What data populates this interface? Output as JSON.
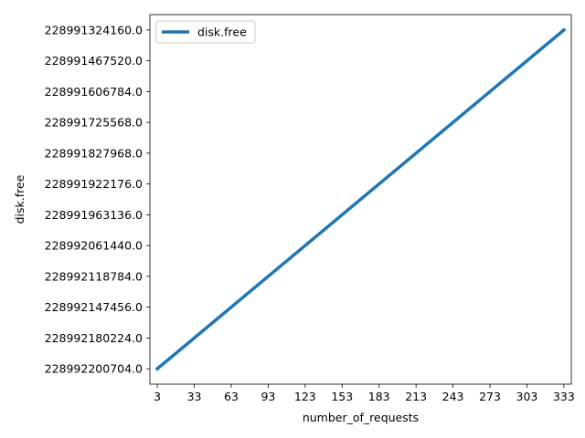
{
  "chart_data": {
    "type": "line",
    "title": "",
    "xlabel": "number_of_requests",
    "ylabel": "disk.free",
    "x_ticks": [
      "3",
      "33",
      "63",
      "93",
      "123",
      "153",
      "183",
      "213",
      "243",
      "273",
      "303",
      "333"
    ],
    "y_ticks": [
      "228992200704.0",
      "228992180224.0",
      "228992147456.0",
      "228992118784.0",
      "228992061440.0",
      "228991963136.0",
      "228991922176.0",
      "228991827968.0",
      "228991725568.0",
      "228991606784.0",
      "228991467520.0",
      "228991324160.0"
    ],
    "xlim": [
      -3,
      339
    ],
    "ylim_index": [
      -0.5,
      11.5
    ],
    "series": [
      {
        "name": "disk.free",
        "color": "#1f77b4",
        "x": [
          3,
          333
        ],
        "y_index": [
          0,
          11
        ]
      }
    ],
    "legend": {
      "entries": [
        "disk.free"
      ],
      "placement": "upper-left"
    },
    "grid": false
  }
}
